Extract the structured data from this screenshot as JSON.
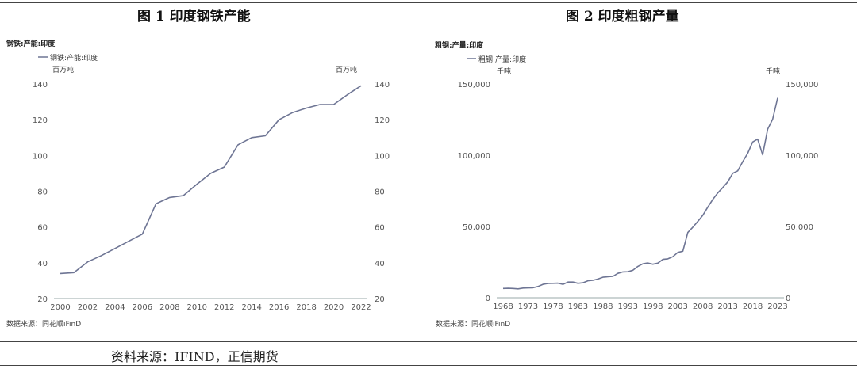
{
  "figures": {
    "fig1_title": "图 1  印度钢铁产能",
    "fig2_title": "图 2   印度粗钢产量",
    "footer_source": "资料来源：IFIND，正信期货"
  },
  "chart_data": [
    {
      "type": "line",
      "title": "钢铁:产能:印度",
      "legend": "钢铁:产能:印度",
      "legend_position": "top-left",
      "unit_left": "百万吨",
      "unit_right": "百万吨",
      "ylim": [
        20,
        140
      ],
      "yticks": [
        20,
        40,
        60,
        80,
        100,
        120,
        140
      ],
      "xticks": [
        2000,
        2002,
        2004,
        2006,
        2008,
        2010,
        2012,
        2014,
        2016,
        2018,
        2020,
        2022
      ],
      "grid": false,
      "color": "#6e7594",
      "source": "数据来源：同花顺iFinD",
      "x": [
        2000,
        2001,
        2002,
        2003,
        2004,
        2005,
        2006,
        2007,
        2008,
        2009,
        2010,
        2011,
        2012,
        2013,
        2014,
        2015,
        2016,
        2017,
        2018,
        2019,
        2020,
        2021,
        2022
      ],
      "series": [
        {
          "values": [
            34,
            34.5,
            40.5,
            44,
            48,
            52,
            56,
            73,
            76.5,
            77.5,
            84,
            90,
            93.5,
            106,
            110,
            111,
            120,
            124,
            126.5,
            128.5,
            128.5,
            134,
            139
          ]
        }
      ]
    },
    {
      "type": "line",
      "title": "粗钢:产量:印度",
      "legend": "粗钢:产量:印度",
      "legend_position": "top-left",
      "unit_left": "千吨",
      "unit_right": "千吨",
      "ylim": [
        0,
        150000
      ],
      "yticks": [
        0,
        50000,
        100000,
        150000
      ],
      "ytick_labels": [
        "0",
        "50,000",
        "100,000",
        "150,000"
      ],
      "xticks": [
        1968,
        1973,
        1978,
        1983,
        1988,
        1993,
        1998,
        2003,
        2008,
        2013,
        2018,
        2023
      ],
      "grid": false,
      "color": "#6e7594",
      "source": "数据来源：同花顺iFinD",
      "x": [
        1968,
        1969,
        1970,
        1971,
        1972,
        1973,
        1974,
        1975,
        1976,
        1977,
        1978,
        1979,
        1980,
        1981,
        1982,
        1983,
        1984,
        1985,
        1986,
        1987,
        1988,
        1989,
        1990,
        1991,
        1992,
        1993,
        1994,
        1995,
        1996,
        1997,
        1998,
        1999,
        2000,
        2001,
        2002,
        2003,
        2004,
        2005,
        2006,
        2007,
        2008,
        2009,
        2010,
        2011,
        2012,
        2013,
        2014,
        2015,
        2016,
        2017,
        2018,
        2019,
        2020,
        2021,
        2022,
        2023
      ],
      "series": [
        {
          "values": [
            6500,
            6600,
            6500,
            6200,
            6800,
            6900,
            7000,
            7900,
            9400,
            10000,
            10100,
            10200,
            9400,
            11000,
            11000,
            10100,
            10500,
            11900,
            12200,
            13100,
            14400,
            14700,
            15000,
            17100,
            18100,
            18200,
            19300,
            22000,
            23800,
            24400,
            23500,
            24300,
            26900,
            27300,
            28800,
            31800,
            32600,
            45800,
            49500,
            53500,
            57800,
            63500,
            68900,
            73500,
            77300,
            81300,
            87300,
            89000,
            95500,
            101400,
            109300,
            111300,
            100300,
            118200,
            125300,
            140200
          ]
        }
      ]
    }
  ]
}
